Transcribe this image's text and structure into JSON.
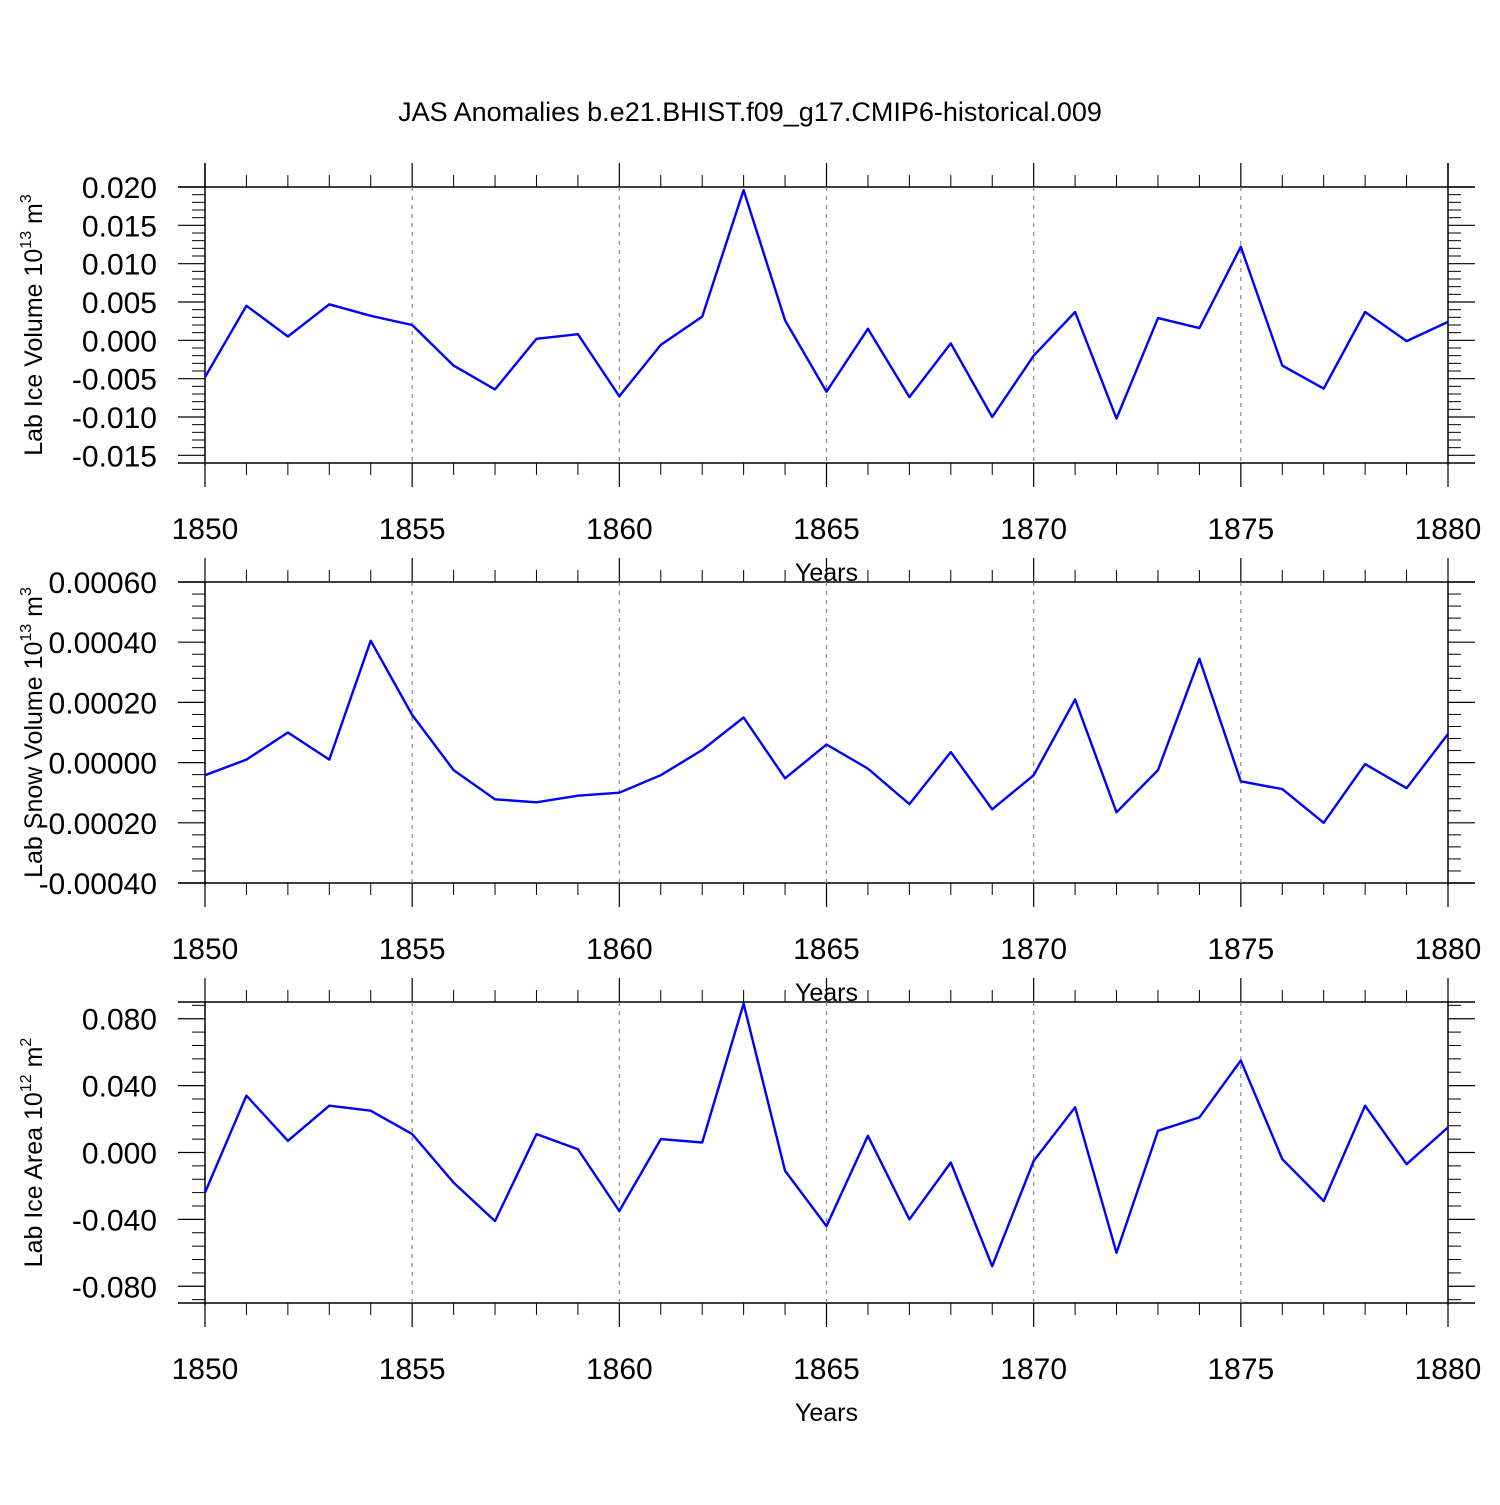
{
  "title": "JAS Anomalies b.e21.BHIST.f09_g17.CMIP6-historical.009",
  "colors": {
    "line": "#0000ff",
    "axis": "#000000",
    "grid": "#888888",
    "background": "#ffffff"
  },
  "chart_data": [
    {
      "type": "line",
      "xlabel": "Years",
      "ylabel": "Lab Ice Volume 10",
      "ylabel_sup": "13",
      "ylabel_unit": " m",
      "ylabel_unit_sup": "3",
      "xlim": [
        1850,
        1880
      ],
      "ylim": [
        -0.016,
        0.02
      ],
      "x_ticks": [
        1850,
        1855,
        1860,
        1865,
        1870,
        1875,
        1880
      ],
      "x_tick_labels": [
        "1850",
        "1855",
        "1860",
        "1865",
        "1870",
        "1875",
        "1880"
      ],
      "y_ticks": [
        0.02,
        0.015,
        0.01,
        0.005,
        0.0,
        -0.005,
        -0.01,
        -0.015
      ],
      "y_tick_labels": [
        "0.020",
        "0.015",
        "0.010",
        "0.005",
        "0.000",
        "-0.005",
        "-0.010",
        "-0.015"
      ],
      "grid": "x-dashed",
      "series": [
        {
          "x": [
            1850,
            1851,
            1852,
            1853,
            1854,
            1855,
            1856,
            1857,
            1858,
            1859,
            1860,
            1861,
            1862,
            1863,
            1864,
            1865,
            1866,
            1867,
            1868,
            1869,
            1870,
            1871,
            1872,
            1873,
            1874,
            1875,
            1876,
            1877,
            1878,
            1879,
            1880
          ],
          "values": [
            -0.0048,
            0.0045,
            0.0005,
            0.0047,
            0.0032,
            0.002,
            -0.0033,
            -0.0064,
            0.0002,
            0.0008,
            -0.0073,
            -0.0006,
            0.0031,
            0.0196,
            0.0026,
            -0.0067,
            0.0015,
            -0.0074,
            -0.0004,
            -0.01,
            -0.002,
            0.0037,
            -0.0102,
            0.0029,
            0.0016,
            0.0122,
            -0.0033,
            -0.0063,
            0.0037,
            -0.0001,
            0.0024
          ]
        }
      ]
    },
    {
      "type": "line",
      "xlabel": "Years",
      "ylabel": "Lab Snow Volume 10",
      "ylabel_sup": "13",
      "ylabel_unit": " m",
      "ylabel_unit_sup": "3",
      "xlim": [
        1850,
        1880
      ],
      "ylim": [
        -0.0004,
        0.0006
      ],
      "x_ticks": [
        1850,
        1855,
        1860,
        1865,
        1870,
        1875,
        1880
      ],
      "x_tick_labels": [
        "1850",
        "1855",
        "1860",
        "1865",
        "1870",
        "1875",
        "1880"
      ],
      "y_ticks": [
        0.0006,
        0.0004,
        0.0002,
        0.0,
        -0.0002,
        -0.0004
      ],
      "y_tick_labels": [
        "0.00060",
        "0.00040",
        "0.00020",
        "0.00000",
        "-0.00020",
        "-0.00040"
      ],
      "grid": "x-dashed",
      "series": [
        {
          "x": [
            1850,
            1851,
            1852,
            1853,
            1854,
            1855,
            1856,
            1857,
            1858,
            1859,
            1860,
            1861,
            1862,
            1863,
            1864,
            1865,
            1866,
            1867,
            1868,
            1869,
            1870,
            1871,
            1872,
            1873,
            1874,
            1875,
            1876,
            1877,
            1878,
            1879,
            1880
          ],
          "values": [
            -4.2e-05,
            1e-05,
            0.0001,
            1e-05,
            0.000405,
            0.000158,
            -2.5e-05,
            -0.000122,
            -0.000132,
            -0.00011,
            -0.0001,
            -4.2e-05,
            4.2e-05,
            0.00015,
            -5.2e-05,
            6e-05,
            -2e-05,
            -0.000138,
            3.5e-05,
            -0.000155,
            -4.2e-05,
            0.00021,
            -0.000165,
            -2.5e-05,
            0.000345,
            -6.2e-05,
            -8.8e-05,
            -0.0002,
            -5e-06,
            -8.5e-05,
            9.5e-05
          ]
        }
      ]
    },
    {
      "type": "line",
      "xlabel": "Years",
      "ylabel": "Lab Ice Area 10",
      "ylabel_sup": "12",
      "ylabel_unit": " m",
      "ylabel_unit_sup": "2",
      "xlim": [
        1850,
        1880
      ],
      "ylim": [
        -0.09,
        0.09
      ],
      "x_ticks": [
        1850,
        1855,
        1860,
        1865,
        1870,
        1875,
        1880
      ],
      "x_tick_labels": [
        "1850",
        "1855",
        "1860",
        "1865",
        "1870",
        "1875",
        "1880"
      ],
      "y_ticks": [
        0.08,
        0.04,
        0.0,
        -0.04,
        -0.08
      ],
      "y_tick_labels": [
        "0.080",
        "0.040",
        "0.000",
        "-0.040",
        "-0.080"
      ],
      "grid": "x-dashed",
      "series": [
        {
          "x": [
            1850,
            1851,
            1852,
            1853,
            1854,
            1855,
            1856,
            1857,
            1858,
            1859,
            1860,
            1861,
            1862,
            1863,
            1864,
            1865,
            1866,
            1867,
            1868,
            1869,
            1870,
            1871,
            1872,
            1873,
            1874,
            1875,
            1876,
            1877,
            1878,
            1879,
            1880
          ],
          "values": [
            -0.024,
            0.034,
            0.007,
            0.028,
            0.025,
            0.011,
            -0.018,
            -0.041,
            0.011,
            0.002,
            -0.035,
            0.008,
            0.006,
            0.089,
            -0.011,
            -0.044,
            0.01,
            -0.04,
            -0.006,
            -0.068,
            -0.005,
            0.027,
            -0.06,
            0.013,
            0.021,
            0.055,
            -0.004,
            -0.029,
            0.028,
            -0.007,
            0.015
          ]
        }
      ]
    }
  ]
}
